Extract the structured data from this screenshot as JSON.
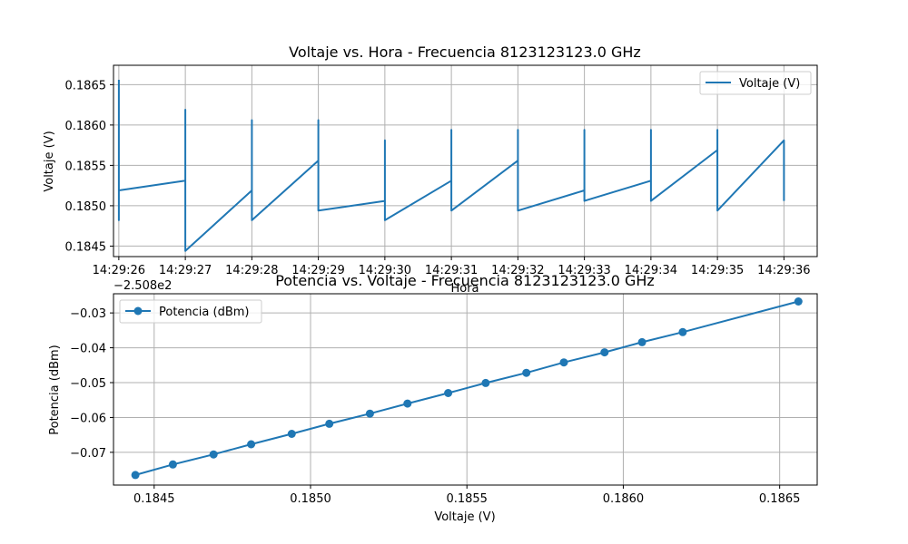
{
  "colors": {
    "series": "#1f77b4",
    "grid": "#b0b0b0",
    "axes": "#000000",
    "background": "#ffffff"
  },
  "chart_data": [
    {
      "type": "line",
      "title": "Voltaje vs. Hora - Frecuencia 8123123123.0 GHz",
      "xlabel": "Hora",
      "ylabel": "Voltaje (V)",
      "offset_text": "−2.508e2",
      "xlim": [
        -0.08,
        10.5
      ],
      "ylim": [
        0.18437,
        0.18674
      ],
      "grid": true,
      "legend_position": "upper right",
      "x_ticks": [
        "14:29:26",
        "14:29:27",
        "14:29:28",
        "14:29:29",
        "14:29:30",
        "14:29:31",
        "14:29:32",
        "14:29:33",
        "14:29:34",
        "14:29:35",
        "14:29:36"
      ],
      "y_ticks": [
        "0.1845",
        "0.1850",
        "0.1855",
        "0.1860",
        "0.1865"
      ],
      "y_tick_values": [
        0.1845,
        0.185,
        0.1855,
        0.186,
        0.1865
      ],
      "series": [
        {
          "name": "Voltaje (V)",
          "marker": "none",
          "t": [
            0,
            0,
            0,
            1,
            1,
            1,
            2,
            2,
            2,
            3,
            3,
            3,
            4,
            4,
            4,
            5,
            5,
            5,
            6,
            6,
            6,
            7,
            7,
            7,
            8,
            8,
            8,
            9,
            9,
            9,
            10,
            10
          ],
          "v": [
            0.18656,
            0.18482,
            0.18519,
            0.18531,
            0.18619,
            0.18444,
            0.18519,
            0.18606,
            0.18482,
            0.18556,
            0.18606,
            0.18494,
            0.18506,
            0.18581,
            0.18482,
            0.18531,
            0.18594,
            0.18494,
            0.18556,
            0.18594,
            0.18494,
            0.18519,
            0.18594,
            0.18506,
            0.18531,
            0.18594,
            0.18506,
            0.18569,
            0.18594,
            0.18494,
            0.18581,
            0.18506
          ],
          "note_order": "vertical spikes at each second, connected by sloped segments"
        }
      ]
    },
    {
      "type": "line",
      "title": "Potencia vs. Voltaje - Frecuencia 8123123123.0 GHz",
      "xlabel": "Voltaje (V)",
      "ylabel": "Potencia (dBm)",
      "xlim": [
        0.18437,
        0.18662
      ],
      "ylim": [
        -0.0794,
        -0.0245
      ],
      "grid": true,
      "legend_position": "upper left",
      "x_ticks": [
        "0.1845",
        "0.1850",
        "0.1855",
        "0.1860",
        "0.1865"
      ],
      "x_tick_values": [
        0.1845,
        0.185,
        0.1855,
        0.186,
        0.1865
      ],
      "y_ticks": [
        "−0.03",
        "−0.04",
        "−0.05",
        "−0.06",
        "−0.07"
      ],
      "y_tick_values": [
        -0.03,
        -0.04,
        -0.05,
        -0.06,
        -0.07
      ],
      "series": [
        {
          "name": "Potencia (dBm)",
          "marker": "circle",
          "x": [
            0.18444,
            0.18456,
            0.18469,
            0.18481,
            0.18494,
            0.18506,
            0.18519,
            0.18531,
            0.18544,
            0.18556,
            0.18569,
            0.18581,
            0.18594,
            0.18606,
            0.18619,
            0.18656
          ],
          "y": [
            -0.0765,
            -0.0735,
            -0.0706,
            -0.0677,
            -0.0647,
            -0.0618,
            -0.0589,
            -0.056,
            -0.053,
            -0.0501,
            -0.0472,
            -0.0442,
            -0.0413,
            -0.0384,
            -0.0355,
            -0.0267
          ]
        }
      ]
    }
  ]
}
